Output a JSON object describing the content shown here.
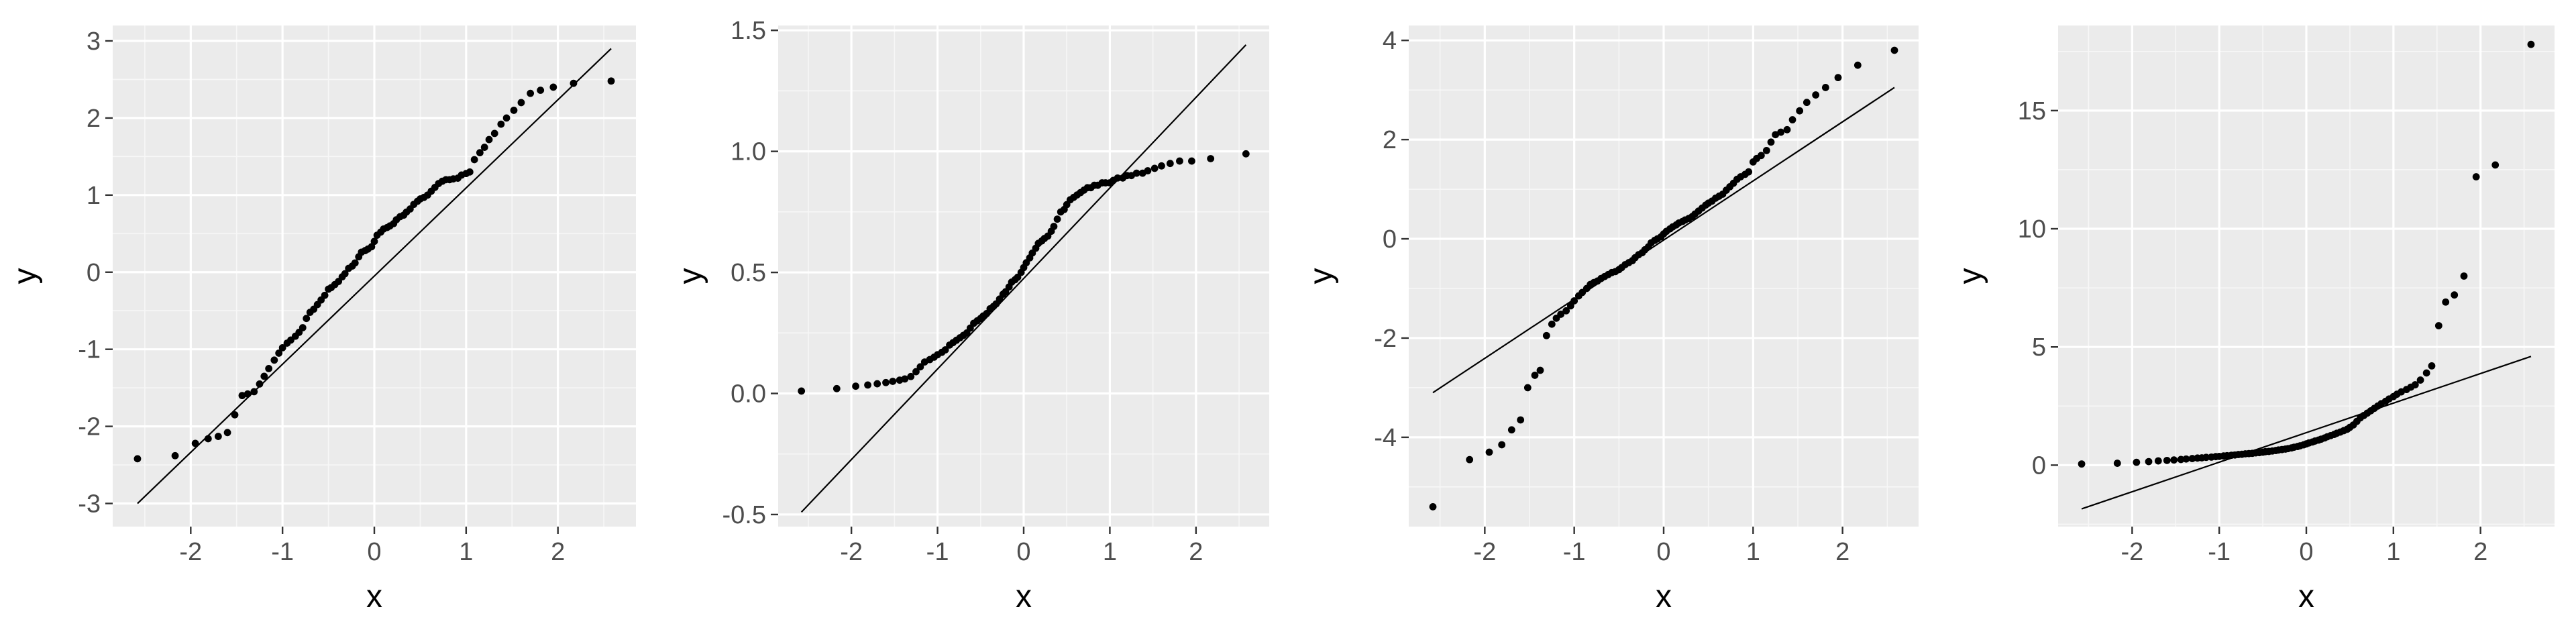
{
  "chart_data": [
    {
      "type": "scatter",
      "subtype": "qq-plot",
      "xlabel": "x",
      "ylabel": "y",
      "xlim": [
        -2.85,
        2.85
      ],
      "ylim": [
        -3.3,
        3.2
      ],
      "xticks": [
        -2,
        -1,
        0,
        1,
        2
      ],
      "yticks": [
        -3,
        -2,
        -1,
        0,
        1,
        2,
        3
      ],
      "reference_line": {
        "x": [
          -2.58,
          2.58
        ],
        "y": [
          -3.0,
          2.9
        ]
      },
      "grid": true,
      "points": {
        "x": [
          -2.58,
          -2.17,
          -1.95,
          -1.81,
          -1.7,
          -1.6,
          -1.52,
          -1.44,
          -1.38,
          -1.31,
          -1.25,
          -1.2,
          -1.15,
          -1.09,
          -1.04,
          -1.0,
          -0.95,
          -0.91,
          -0.86,
          -0.82,
          -0.78,
          -0.74,
          -0.7,
          -0.66,
          -0.62,
          -0.58,
          -0.54,
          -0.5,
          -0.47,
          -0.43,
          -0.39,
          -0.35,
          -0.32,
          -0.28,
          -0.24,
          -0.21,
          -0.17,
          -0.14,
          -0.1,
          -0.07,
          -0.03,
          0.0,
          0.03,
          0.07,
          0.1,
          0.14,
          0.17,
          0.21,
          0.24,
          0.28,
          0.32,
          0.35,
          0.39,
          0.43,
          0.47,
          0.5,
          0.54,
          0.58,
          0.62,
          0.66,
          0.7,
          0.74,
          0.78,
          0.82,
          0.86,
          0.91,
          0.95,
          1.0,
          1.04,
          1.09,
          1.15,
          1.2,
          1.25,
          1.31,
          1.38,
          1.44,
          1.52,
          1.6,
          1.7,
          1.81,
          1.95,
          2.17,
          2.58
        ],
        "y": [
          -2.42,
          -2.38,
          -2.22,
          -2.16,
          -2.13,
          -2.08,
          -1.85,
          -1.6,
          -1.58,
          -1.55,
          -1.45,
          -1.35,
          -1.25,
          -1.14,
          -1.05,
          -0.98,
          -0.92,
          -0.88,
          -0.83,
          -0.78,
          -0.72,
          -0.6,
          -0.52,
          -0.48,
          -0.42,
          -0.36,
          -0.3,
          -0.22,
          -0.2,
          -0.16,
          -0.12,
          -0.06,
          -0.02,
          0.05,
          0.08,
          0.12,
          0.2,
          0.26,
          0.28,
          0.3,
          0.33,
          0.4,
          0.48,
          0.52,
          0.56,
          0.58,
          0.6,
          0.63,
          0.68,
          0.72,
          0.74,
          0.78,
          0.82,
          0.88,
          0.92,
          0.95,
          0.97,
          1.0,
          1.05,
          1.1,
          1.15,
          1.18,
          1.2,
          1.2,
          1.21,
          1.22,
          1.26,
          1.28,
          1.3,
          1.46,
          1.55,
          1.62,
          1.72,
          1.8,
          1.92,
          2.0,
          2.1,
          2.2,
          2.32,
          2.36,
          2.4,
          2.45,
          2.48
        ]
      }
    },
    {
      "type": "scatter",
      "subtype": "qq-plot",
      "xlabel": "x",
      "ylabel": "y",
      "xlim": [
        -2.85,
        2.85
      ],
      "ylim": [
        -0.55,
        1.52
      ],
      "xticks": [
        -2,
        -1,
        0,
        1,
        2
      ],
      "yticks": [
        -0.5,
        0.0,
        0.5,
        1.0,
        1.5
      ],
      "ytick_labels": [
        "-0.5",
        "0.0",
        "0.5",
        "1.0",
        "1.5"
      ],
      "reference_line": {
        "x": [
          -2.58,
          2.58
        ],
        "y": [
          -0.49,
          1.44
        ]
      },
      "grid": true,
      "points": {
        "x": [
          -2.58,
          -2.17,
          -1.95,
          -1.81,
          -1.7,
          -1.6,
          -1.52,
          -1.44,
          -1.38,
          -1.31,
          -1.25,
          -1.2,
          -1.15,
          -1.09,
          -1.04,
          -1.0,
          -0.95,
          -0.91,
          -0.86,
          -0.82,
          -0.78,
          -0.74,
          -0.7,
          -0.66,
          -0.62,
          -0.58,
          -0.54,
          -0.5,
          -0.47,
          -0.43,
          -0.39,
          -0.35,
          -0.32,
          -0.28,
          -0.24,
          -0.21,
          -0.17,
          -0.14,
          -0.1,
          -0.07,
          -0.03,
          0.0,
          0.03,
          0.07,
          0.1,
          0.14,
          0.17,
          0.21,
          0.24,
          0.28,
          0.32,
          0.35,
          0.39,
          0.43,
          0.47,
          0.5,
          0.54,
          0.58,
          0.62,
          0.66,
          0.7,
          0.74,
          0.78,
          0.82,
          0.86,
          0.91,
          0.95,
          1.0,
          1.04,
          1.09,
          1.15,
          1.2,
          1.25,
          1.31,
          1.38,
          1.44,
          1.52,
          1.6,
          1.7,
          1.81,
          1.95,
          2.17,
          2.58
        ],
        "y": [
          0.01,
          0.02,
          0.03,
          0.035,
          0.04,
          0.045,
          0.05,
          0.055,
          0.06,
          0.07,
          0.09,
          0.11,
          0.13,
          0.14,
          0.15,
          0.16,
          0.17,
          0.18,
          0.2,
          0.21,
          0.22,
          0.23,
          0.24,
          0.25,
          0.27,
          0.29,
          0.3,
          0.31,
          0.32,
          0.33,
          0.35,
          0.36,
          0.37,
          0.39,
          0.41,
          0.42,
          0.44,
          0.46,
          0.47,
          0.48,
          0.5,
          0.52,
          0.54,
          0.56,
          0.58,
          0.6,
          0.62,
          0.63,
          0.64,
          0.65,
          0.67,
          0.69,
          0.72,
          0.75,
          0.76,
          0.78,
          0.8,
          0.81,
          0.82,
          0.83,
          0.84,
          0.85,
          0.85,
          0.86,
          0.86,
          0.87,
          0.87,
          0.87,
          0.88,
          0.89,
          0.89,
          0.9,
          0.9,
          0.91,
          0.91,
          0.92,
          0.93,
          0.94,
          0.95,
          0.96,
          0.96,
          0.97,
          0.99
        ]
      }
    },
    {
      "type": "scatter",
      "subtype": "qq-plot",
      "xlabel": "x",
      "ylabel": "y",
      "xlim": [
        -2.85,
        2.85
      ],
      "ylim": [
        -5.8,
        4.3
      ],
      "xticks": [
        -2,
        -1,
        0,
        1,
        2
      ],
      "yticks": [
        -4,
        -2,
        0,
        2,
        4
      ],
      "reference_line": {
        "x": [
          -2.58,
          2.58
        ],
        "y": [
          -3.1,
          3.05
        ]
      },
      "grid": true,
      "points": {
        "x": [
          -2.58,
          -2.17,
          -1.95,
          -1.81,
          -1.7,
          -1.6,
          -1.52,
          -1.44,
          -1.38,
          -1.31,
          -1.25,
          -1.2,
          -1.15,
          -1.09,
          -1.04,
          -1.0,
          -0.95,
          -0.91,
          -0.86,
          -0.82,
          -0.78,
          -0.74,
          -0.7,
          -0.66,
          -0.62,
          -0.58,
          -0.54,
          -0.5,
          -0.47,
          -0.43,
          -0.39,
          -0.35,
          -0.32,
          -0.28,
          -0.24,
          -0.21,
          -0.17,
          -0.14,
          -0.1,
          -0.07,
          -0.03,
          0.0,
          0.03,
          0.07,
          0.1,
          0.14,
          0.17,
          0.21,
          0.24,
          0.28,
          0.32,
          0.35,
          0.39,
          0.43,
          0.47,
          0.5,
          0.54,
          0.58,
          0.62,
          0.66,
          0.7,
          0.74,
          0.78,
          0.82,
          0.86,
          0.91,
          0.95,
          1.0,
          1.04,
          1.09,
          1.15,
          1.2,
          1.25,
          1.31,
          1.38,
          1.44,
          1.52,
          1.6,
          1.7,
          1.81,
          1.95,
          2.17,
          2.58
        ],
        "y": [
          -5.4,
          -4.45,
          -4.3,
          -4.15,
          -3.85,
          -3.65,
          -3.0,
          -2.75,
          -2.65,
          -1.95,
          -1.72,
          -1.6,
          -1.52,
          -1.45,
          -1.35,
          -1.25,
          -1.15,
          -1.08,
          -1.0,
          -0.92,
          -0.88,
          -0.85,
          -0.8,
          -0.76,
          -0.72,
          -0.68,
          -0.66,
          -0.62,
          -0.58,
          -0.52,
          -0.48,
          -0.44,
          -0.38,
          -0.32,
          -0.28,
          -0.22,
          -0.16,
          -0.08,
          -0.03,
          0.0,
          0.04,
          0.1,
          0.15,
          0.2,
          0.24,
          0.28,
          0.32,
          0.35,
          0.38,
          0.41,
          0.45,
          0.5,
          0.56,
          0.62,
          0.68,
          0.72,
          0.76,
          0.82,
          0.86,
          0.9,
          0.98,
          1.05,
          1.12,
          1.2,
          1.25,
          1.3,
          1.35,
          1.55,
          1.62,
          1.68,
          1.78,
          1.95,
          2.1,
          2.15,
          2.2,
          2.4,
          2.58,
          2.75,
          2.9,
          3.05,
          3.25,
          3.5,
          3.8
        ]
      }
    },
    {
      "type": "scatter",
      "subtype": "qq-plot",
      "xlabel": "x",
      "ylabel": "y",
      "xlim": [
        -2.85,
        2.85
      ],
      "ylim": [
        -2.6,
        18.6
      ],
      "xticks": [
        -2,
        -1,
        0,
        1,
        2
      ],
      "yticks": [
        0,
        5,
        10,
        15
      ],
      "reference_line": {
        "x": [
          -2.58,
          2.58
        ],
        "y": [
          -1.85,
          4.6
        ]
      },
      "grid": true,
      "points": {
        "x": [
          -2.58,
          -2.17,
          -1.95,
          -1.81,
          -1.7,
          -1.6,
          -1.52,
          -1.44,
          -1.38,
          -1.31,
          -1.25,
          -1.2,
          -1.15,
          -1.09,
          -1.04,
          -1.0,
          -0.95,
          -0.91,
          -0.86,
          -0.82,
          -0.78,
          -0.74,
          -0.7,
          -0.66,
          -0.62,
          -0.58,
          -0.54,
          -0.5,
          -0.47,
          -0.43,
          -0.39,
          -0.35,
          -0.32,
          -0.28,
          -0.24,
          -0.21,
          -0.17,
          -0.14,
          -0.1,
          -0.07,
          -0.03,
          0.0,
          0.03,
          0.07,
          0.1,
          0.14,
          0.17,
          0.21,
          0.24,
          0.28,
          0.32,
          0.35,
          0.39,
          0.43,
          0.47,
          0.5,
          0.54,
          0.58,
          0.62,
          0.66,
          0.7,
          0.74,
          0.78,
          0.82,
          0.86,
          0.91,
          0.95,
          1.0,
          1.04,
          1.09,
          1.15,
          1.2,
          1.25,
          1.31,
          1.38,
          1.44,
          1.52,
          1.6,
          1.7,
          1.81,
          1.95,
          2.17,
          2.58
        ],
        "y": [
          0.05,
          0.08,
          0.12,
          0.15,
          0.18,
          0.2,
          0.22,
          0.24,
          0.26,
          0.28,
          0.3,
          0.31,
          0.33,
          0.34,
          0.36,
          0.37,
          0.39,
          0.4,
          0.42,
          0.43,
          0.45,
          0.46,
          0.48,
          0.49,
          0.5,
          0.52,
          0.53,
          0.55,
          0.57,
          0.58,
          0.6,
          0.62,
          0.64,
          0.66,
          0.68,
          0.7,
          0.73,
          0.76,
          0.79,
          0.82,
          0.86,
          0.9,
          0.94,
          0.98,
          1.02,
          1.06,
          1.1,
          1.15,
          1.2,
          1.25,
          1.3,
          1.35,
          1.4,
          1.46,
          1.52,
          1.6,
          1.7,
          1.85,
          2.0,
          2.1,
          2.2,
          2.3,
          2.4,
          2.5,
          2.6,
          2.7,
          2.8,
          2.9,
          3.0,
          3.1,
          3.2,
          3.3,
          3.4,
          3.6,
          3.9,
          4.2,
          5.9,
          6.9,
          7.2,
          8.0,
          12.2,
          12.7,
          17.8
        ]
      }
    }
  ]
}
